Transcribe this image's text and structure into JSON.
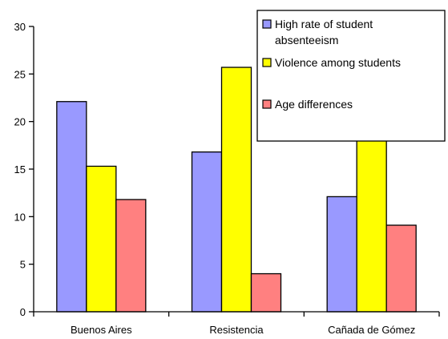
{
  "chart_data": {
    "type": "bar",
    "title": "",
    "xlabel": "",
    "ylabel": "",
    "ylim": [
      0,
      30
    ],
    "yticks": [
      0,
      5,
      10,
      15,
      20,
      25,
      30
    ],
    "grid": false,
    "legend_position": "top-right",
    "categories": [
      "Buenos Aires",
      "Resistencia",
      "Cañada de Gómez"
    ],
    "series": [
      {
        "name": "High rate of student absenteeism",
        "legend_lines": [
          "High rate of student",
          "absenteeism"
        ],
        "color": "#9999ff",
        "values": [
          22.1,
          16.8,
          12.1
        ]
      },
      {
        "name": "Violence among students",
        "legend_lines": [
          "Violence among students"
        ],
        "color": "#ffff00",
        "values": [
          15.3,
          25.7,
          18.5
        ]
      },
      {
        "name": "Age differences",
        "legend_lines": [
          "Age differences"
        ],
        "color": "#ff8080",
        "values": [
          11.8,
          4.0,
          9.1
        ]
      }
    ]
  }
}
